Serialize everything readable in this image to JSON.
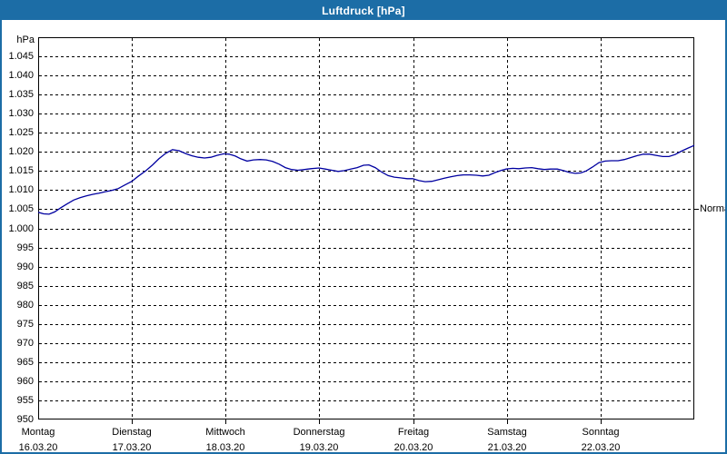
{
  "window": {
    "title": "Luftdruck [hPa]",
    "accent_color": "#1c6da6",
    "background_color": "#ffffff"
  },
  "chart_data": {
    "type": "line",
    "title": "Luftdruck [hPa]",
    "y_unit_label": "hPa",
    "ylabel": "hPa",
    "xlabel": "",
    "ylim": [
      950,
      1050
    ],
    "y_tick_step": 5,
    "y_tick_values": [
      1045,
      1040,
      1035,
      1030,
      1025,
      1020,
      1015,
      1010,
      1005,
      1000,
      995,
      990,
      985,
      980,
      975,
      970,
      965,
      960,
      955,
      950
    ],
    "y_tick_labels": [
      "1.045",
      "1.040",
      "1.035",
      "1.030",
      "1.025",
      "1.020",
      "1.015",
      "1.010",
      "1.005",
      "1.000",
      "995",
      "990",
      "985",
      "980",
      "975",
      "970",
      "965",
      "960",
      "955",
      "950"
    ],
    "x_hours_range": [
      0,
      168
    ],
    "grid": "dashed",
    "grid_color": "#000000",
    "legend_position": "none",
    "x_axis_days": [
      {
        "name": "Montag",
        "date": "16.03.20",
        "start_hour": 0
      },
      {
        "name": "Dienstag",
        "date": "17.03.20",
        "start_hour": 24
      },
      {
        "name": "Mittwoch",
        "date": "18.03.20",
        "start_hour": 48
      },
      {
        "name": "Donnerstag",
        "date": "19.03.20",
        "start_hour": 72
      },
      {
        "name": "Freitag",
        "date": "20.03.20",
        "start_hour": 96
      },
      {
        "name": "Samstag",
        "date": "21.03.20",
        "start_hour": 120
      },
      {
        "name": "Sonntag",
        "date": "22.03.20",
        "start_hour": 144
      }
    ],
    "annotations": [
      {
        "label": "Normal",
        "value": 1005,
        "side": "right"
      }
    ],
    "series": [
      {
        "name": "Luftdruck",
        "color": "#0000a0",
        "x_hours": [
          0,
          1.4,
          2.8,
          4.2,
          5.8,
          7.4,
          9.1,
          10.7,
          12.3,
          14.0,
          15.6,
          17.2,
          18.8,
          20.5,
          22.1,
          24.0,
          25.6,
          27.5,
          29.3,
          30.9,
          32.6,
          34.4,
          36.1,
          37.7,
          39.3,
          41.0,
          42.6,
          44.2,
          45.8,
          47.5,
          48.9,
          50.5,
          51.9,
          53.5,
          55.1,
          56.8,
          58.4,
          60.0,
          61.7,
          63.3,
          64.9,
          66.5,
          68.2,
          69.8,
          71.9,
          73.5,
          75.2,
          76.8,
          78.4,
          80.0,
          81.7,
          83.3,
          84.7,
          86.3,
          88.0,
          89.6,
          91.2,
          92.8,
          94.5,
          95.9,
          97.5,
          99.1,
          100.8,
          102.4,
          104.0,
          105.6,
          107.3,
          108.9,
          110.5,
          112.2,
          113.8,
          115.4,
          117.0,
          118.7,
          119.8,
          121.5,
          123.1,
          124.7,
          126.4,
          128.0,
          129.6,
          131.2,
          132.9,
          134.5,
          136.1,
          137.5,
          138.9,
          140.3,
          141.9,
          143.6,
          145.2,
          146.8,
          148.5,
          150.1,
          151.7,
          153.3,
          155.0,
          156.6,
          158.2,
          159.9,
          161.5,
          163.1,
          164.7,
          166.4,
          168.0
        ],
        "values": [
          1004.2,
          1003.8,
          1003.7,
          1004.3,
          1005.4,
          1006.4,
          1007.4,
          1008.0,
          1008.5,
          1008.9,
          1009.2,
          1009.6,
          1009.9,
          1010.4,
          1011.3,
          1012.3,
          1013.6,
          1015.0,
          1016.6,
          1018.2,
          1019.6,
          1020.6,
          1020.3,
          1019.6,
          1019.0,
          1018.6,
          1018.4,
          1018.6,
          1019.1,
          1019.5,
          1019.4,
          1018.9,
          1018.2,
          1017.6,
          1017.9,
          1018.0,
          1017.9,
          1017.5,
          1016.8,
          1015.9,
          1015.4,
          1015.2,
          1015.4,
          1015.6,
          1015.8,
          1015.5,
          1015.2,
          1014.9,
          1015.1,
          1015.5,
          1015.9,
          1016.5,
          1016.6,
          1015.9,
          1014.7,
          1013.8,
          1013.4,
          1013.2,
          1013.0,
          1013.0,
          1012.5,
          1012.2,
          1012.3,
          1012.7,
          1013.1,
          1013.5,
          1013.8,
          1014.0,
          1014.0,
          1013.9,
          1013.7,
          1013.9,
          1014.6,
          1015.2,
          1015.5,
          1015.7,
          1015.6,
          1015.8,
          1015.9,
          1015.6,
          1015.4,
          1015.5,
          1015.5,
          1015.1,
          1014.6,
          1014.4,
          1014.5,
          1015.0,
          1016.0,
          1017.2,
          1017.6,
          1017.7,
          1017.7,
          1018.0,
          1018.5,
          1019.0,
          1019.4,
          1019.4,
          1019.1,
          1018.8,
          1018.8,
          1019.3,
          1020.2,
          1021.0,
          1021.7
        ]
      }
    ]
  }
}
